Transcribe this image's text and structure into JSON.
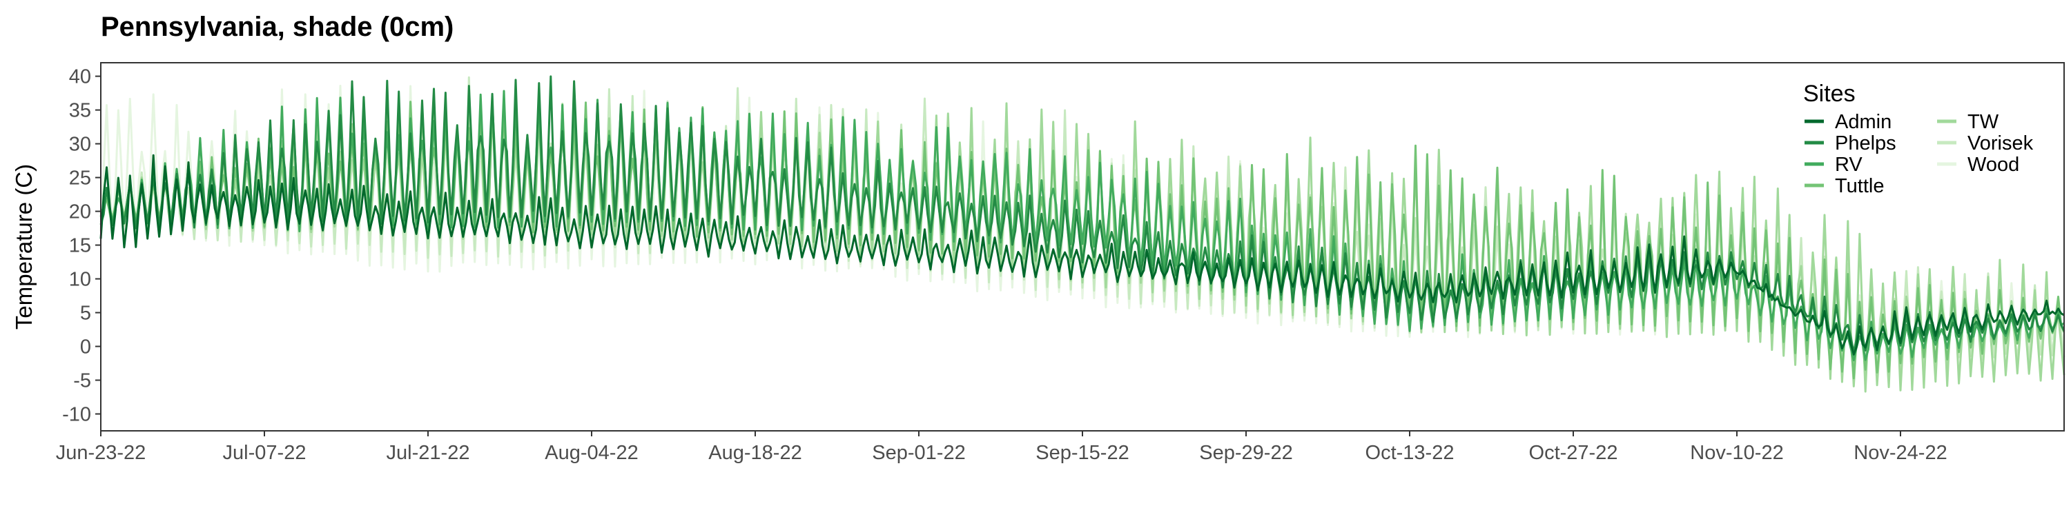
{
  "chart_data": {
    "type": "line",
    "title": "Pennsylvania, shade (0cm)",
    "xlabel": "",
    "ylabel": "Temperature (C)",
    "xlim": [
      "2022-06-23",
      "2022-12-08"
    ],
    "ylim": [
      -12.5,
      42
    ],
    "y_ticks": [
      -10,
      -5,
      0,
      5,
      10,
      15,
      20,
      25,
      30,
      35,
      40
    ],
    "x_ticks": [
      {
        "date": "2022-06-23",
        "label": "Jun-23-22"
      },
      {
        "date": "2022-07-07",
        "label": "Jul-07-22"
      },
      {
        "date": "2022-07-21",
        "label": "Jul-21-22"
      },
      {
        "date": "2022-08-04",
        "label": "Aug-04-22"
      },
      {
        "date": "2022-08-18",
        "label": "Aug-18-22"
      },
      {
        "date": "2022-09-01",
        "label": "Sep-01-22"
      },
      {
        "date": "2022-09-15",
        "label": "Sep-15-22"
      },
      {
        "date": "2022-09-29",
        "label": "Sep-29-22"
      },
      {
        "date": "2022-10-13",
        "label": "Oct-13-22"
      },
      {
        "date": "2022-10-27",
        "label": "Oct-27-22"
      },
      {
        "date": "2022-11-10",
        "label": "Nov-10-22"
      },
      {
        "date": "2022-11-24",
        "label": "Nov-24-22"
      }
    ],
    "grid": false,
    "legend": {
      "title": "Sites",
      "position": "top-right"
    },
    "series_style": "daily min / max, diurnal cycle",
    "series": [
      {
        "name": "Admin",
        "color": "#00682C",
        "daily": [
          {
            "date": "2022-06-23",
            "min": 15,
            "max": 30
          },
          {
            "date": "2022-06-26",
            "min": 14,
            "max": 28
          },
          {
            "date": "2022-06-29",
            "min": 16,
            "max": 29
          },
          {
            "date": "2022-07-02",
            "min": 18,
            "max": 26
          },
          {
            "date": "2022-10-01",
            "min": 8,
            "max": 14
          },
          {
            "date": "2022-10-15",
            "min": 6,
            "max": 11
          },
          {
            "date": "2022-11-05",
            "min": 8,
            "max": 17
          },
          {
            "date": "2022-11-10",
            "min": 10,
            "max": 13
          },
          {
            "date": "2022-11-14",
            "min": 5,
            "max": 7
          },
          {
            "date": "2022-11-20",
            "min": -2,
            "max": 4
          },
          {
            "date": "2022-11-25",
            "min": 1,
            "max": 6
          },
          {
            "date": "2022-12-08",
            "min": 4,
            "max": 7
          }
        ]
      },
      {
        "name": "Phelps",
        "color": "#238B45",
        "daily": [
          {
            "date": "2022-06-23",
            "min": 17,
            "max": 24
          },
          {
            "date": "2022-07-15",
            "min": 18,
            "max": 40
          },
          {
            "date": "2022-08-04",
            "min": 19,
            "max": 40
          },
          {
            "date": "2022-09-01",
            "min": 17,
            "max": 26
          },
          {
            "date": "2022-10-01",
            "min": 7,
            "max": 16
          },
          {
            "date": "2022-10-15",
            "min": 3,
            "max": 12
          },
          {
            "date": "2022-11-10",
            "min": 9,
            "max": 15
          },
          {
            "date": "2022-11-20",
            "min": -1,
            "max": 5
          },
          {
            "date": "2022-12-08",
            "min": 2,
            "max": 6
          }
        ]
      },
      {
        "name": "RV",
        "color": "#41AB5D",
        "daily": [
          {
            "date": "2022-06-23",
            "min": 18,
            "max": 23
          },
          {
            "date": "2022-07-10",
            "min": 17,
            "max": 39
          },
          {
            "date": "2022-08-10",
            "min": 18,
            "max": 38
          },
          {
            "date": "2022-09-15",
            "min": 14,
            "max": 30
          },
          {
            "date": "2022-10-13",
            "min": 2,
            "max": 14
          },
          {
            "date": "2022-11-10",
            "min": 6,
            "max": 14
          },
          {
            "date": "2022-11-20",
            "min": -3,
            "max": 4
          },
          {
            "date": "2022-12-08",
            "min": 2,
            "max": 6
          }
        ]
      },
      {
        "name": "Tuttle",
        "color": "#74C476",
        "daily": [
          {
            "date": "2022-06-23",
            "min": 18,
            "max": 24
          },
          {
            "date": "2022-07-20",
            "min": 17,
            "max": 38
          },
          {
            "date": "2022-08-20",
            "min": 16,
            "max": 36
          },
          {
            "date": "2022-09-20",
            "min": 10,
            "max": 28
          },
          {
            "date": "2022-10-13",
            "min": 3,
            "max": 30
          },
          {
            "date": "2022-11-10",
            "min": 3,
            "max": 25
          },
          {
            "date": "2022-11-20",
            "min": -5,
            "max": 10
          },
          {
            "date": "2022-12-08",
            "min": 1,
            "max": 8
          }
        ]
      },
      {
        "name": "TW",
        "color": "#A1D99B",
        "daily": [
          {
            "date": "2022-06-23",
            "min": 18,
            "max": 24
          },
          {
            "date": "2022-07-20",
            "min": 16,
            "max": 37
          },
          {
            "date": "2022-08-20",
            "min": 15,
            "max": 37
          },
          {
            "date": "2022-09-20",
            "min": 8,
            "max": 36
          },
          {
            "date": "2022-10-13",
            "min": 2,
            "max": 30
          },
          {
            "date": "2022-11-10",
            "min": 1,
            "max": 28
          },
          {
            "date": "2022-11-20",
            "min": -7,
            "max": 19
          },
          {
            "date": "2022-12-08",
            "min": -5,
            "max": 12
          }
        ]
      },
      {
        "name": "Vorisek",
        "color": "#C7E9C0",
        "daily": [
          {
            "date": "2022-06-23",
            "min": 17,
            "max": 24
          },
          {
            "date": "2022-07-20",
            "min": 13,
            "max": 40
          },
          {
            "date": "2022-08-20",
            "min": 14,
            "max": 39
          },
          {
            "date": "2022-09-20",
            "min": 6,
            "max": 34
          },
          {
            "date": "2022-10-13",
            "min": 2,
            "max": 25
          },
          {
            "date": "2022-11-10",
            "min": 2,
            "max": 20
          },
          {
            "date": "2022-11-20",
            "min": -4,
            "max": 13
          },
          {
            "date": "2022-12-08",
            "min": -2,
            "max": 10
          }
        ]
      },
      {
        "name": "Wood",
        "color": "#E5F5E0",
        "daily": [
          {
            "date": "2022-06-23",
            "min": 17,
            "max": 38
          },
          {
            "date": "2022-07-20",
            "min": 11,
            "max": 40
          },
          {
            "date": "2022-08-20",
            "min": 12,
            "max": 39
          },
          {
            "date": "2022-09-20",
            "min": 5,
            "max": 30
          },
          {
            "date": "2022-10-13",
            "min": 1,
            "max": 25
          },
          {
            "date": "2022-11-10",
            "min": 2,
            "max": 20
          },
          {
            "date": "2022-11-20",
            "min": -3,
            "max": 11
          },
          {
            "date": "2022-12-08",
            "min": 0,
            "max": 9
          }
        ]
      }
    ]
  }
}
